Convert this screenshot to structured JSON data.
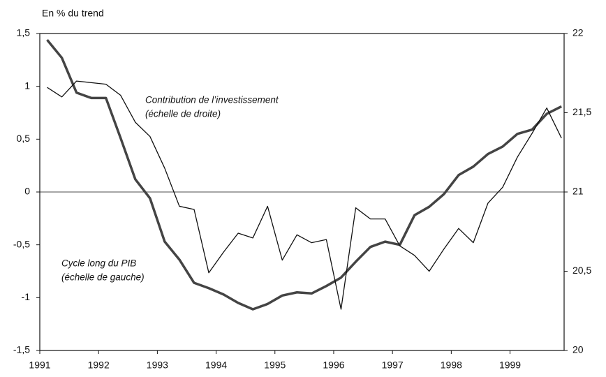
{
  "chart_data": {
    "type": "line",
    "y_label": "En % du trend",
    "annotations": [
      "Contribution de l’investissement",
      "(échelle de droite)",
      "Cycle long du PIB",
      "(échelle de gauche)"
    ],
    "x": [
      1991.125,
      1991.375,
      1991.625,
      1991.875,
      1992.125,
      1992.375,
      1992.625,
      1992.875,
      1993.125,
      1993.375,
      1993.625,
      1993.875,
      1994.125,
      1994.375,
      1994.625,
      1994.875,
      1995.125,
      1995.375,
      1995.625,
      1995.875,
      1996.125,
      1996.375,
      1996.625,
      1996.875,
      1997.125,
      1997.375,
      1997.625,
      1997.875,
      1998.125,
      1998.375,
      1998.625,
      1998.875,
      1999.125,
      1999.375,
      1999.625,
      1999.875
    ],
    "xlim": [
      1991,
      1999.92
    ],
    "xticks": [
      1991,
      1992,
      1993,
      1994,
      1995,
      1996,
      1997,
      1998,
      1999
    ],
    "ylim": [
      -1.5,
      1.5
    ],
    "yticks": [
      {
        "value": -1.5,
        "label": "-1,5"
      },
      -1,
      {
        "value": -0.5,
        "label": "-0,5"
      },
      0,
      {
        "value": 0.5,
        "label": "0,5"
      },
      1,
      {
        "value": 1.5,
        "label": "1,5"
      }
    ],
    "y2lim": [
      20,
      22
    ],
    "y2ticks": [
      20,
      {
        "value": 20.5,
        "label": "20,5"
      },
      21,
      {
        "value": 21.5,
        "label": "21,5"
      },
      22
    ],
    "zero_line": true,
    "series": [
      {
        "name": "Cycle long du PIB",
        "color": "#444444",
        "width": 3.5,
        "axis": "y",
        "values": [
          1.44,
          1.27,
          0.94,
          0.89,
          0.89,
          0.51,
          0.12,
          -0.06,
          -0.47,
          -0.64,
          -0.86,
          -0.91,
          -0.97,
          -1.05,
          -1.11,
          -1.06,
          -0.98,
          -0.95,
          -0.96,
          -0.89,
          -0.81,
          -0.66,
          -0.52,
          -0.47,
          -0.5,
          -0.22,
          -0.14,
          -0.02,
          0.16,
          0.24,
          0.36,
          0.43,
          0.55,
          0.59,
          0.74,
          0.81
        ]
      },
      {
        "name": "Contribution de l’investissement",
        "color": "#111111",
        "width": 1.3,
        "axis": "y2",
        "values": [
          21.66,
          21.6,
          21.7,
          21.69,
          21.68,
          21.61,
          21.44,
          21.35,
          21.15,
          20.91,
          20.89,
          20.49,
          20.62,
          20.74,
          20.71,
          20.91,
          20.57,
          20.73,
          20.68,
          20.7,
          20.26,
          20.9,
          20.83,
          20.83,
          20.66,
          20.6,
          20.5,
          20.64,
          20.77,
          20.68,
          20.93,
          21.03,
          21.22,
          21.37,
          21.53,
          21.34
        ]
      }
    ]
  }
}
